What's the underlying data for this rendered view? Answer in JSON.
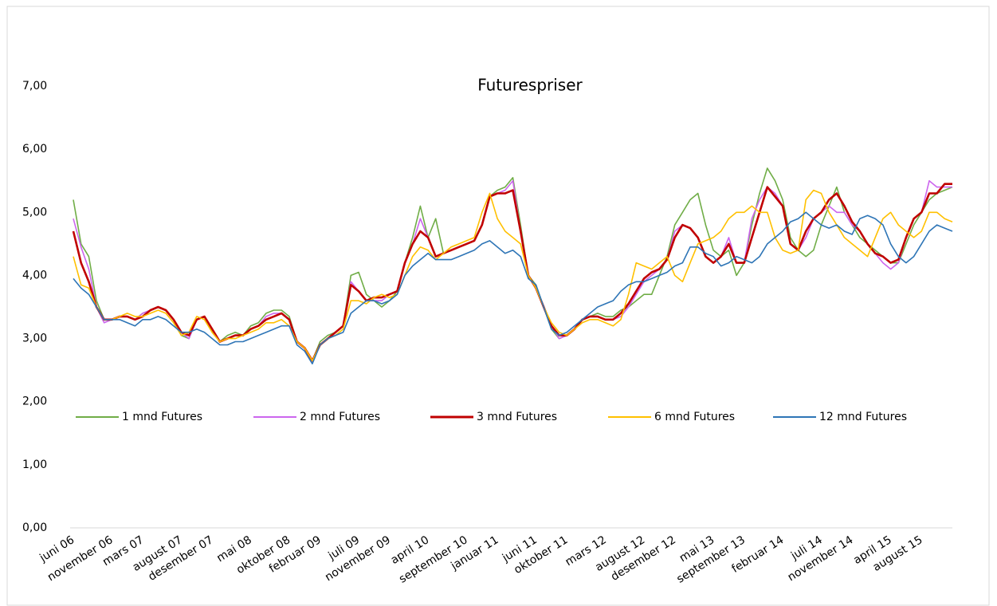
{
  "chart_data": {
    "type": "line",
    "title": "Futurespriser",
    "categories": [
      "juni 06",
      null,
      null,
      null,
      null,
      "november 06",
      null,
      null,
      null,
      "mars 07",
      null,
      null,
      null,
      null,
      "august 07",
      null,
      null,
      null,
      "desember 07",
      null,
      null,
      null,
      null,
      "mai 08",
      null,
      null,
      null,
      null,
      "oktober 08",
      null,
      null,
      null,
      "februar 09",
      null,
      null,
      null,
      null,
      "juli 09",
      null,
      null,
      null,
      "november 09",
      null,
      null,
      null,
      null,
      "april 10",
      null,
      null,
      null,
      null,
      "september 10",
      null,
      null,
      null,
      "januar 11",
      null,
      null,
      null,
      null,
      "juni 11",
      null,
      null,
      null,
      "oktober 11",
      null,
      null,
      null,
      null,
      "mars 12",
      null,
      null,
      null,
      null,
      "august 12",
      null,
      null,
      null,
      "desember 12",
      null,
      null,
      null,
      null,
      "mai 13",
      null,
      null,
      null,
      "september 13",
      null,
      null,
      null,
      null,
      "februar 14",
      null,
      null,
      null,
      null,
      "juli 14",
      null,
      null,
      null,
      "november 14",
      null,
      null,
      null,
      null,
      "april 15",
      null,
      null,
      null,
      "august 15",
      null,
      null,
      null,
      null
    ],
    "series": [
      {
        "name": "1 mnd Futures",
        "color": "#70ad47",
        "values": [
          5.2,
          4.5,
          4.3,
          3.6,
          3.3,
          3.3,
          3.35,
          3.35,
          3.3,
          3.4,
          3.45,
          3.5,
          3.45,
          3.3,
          3.05,
          3.0,
          3.3,
          3.35,
          3.1,
          2.95,
          3.05,
          3.1,
          3.05,
          3.2,
          3.25,
          3.4,
          3.45,
          3.45,
          3.35,
          2.95,
          2.85,
          2.65,
          2.95,
          3.05,
          3.1,
          3.2,
          4.0,
          4.05,
          3.7,
          3.6,
          3.5,
          3.6,
          3.75,
          4.2,
          4.6,
          5.1,
          4.6,
          4.9,
          4.35,
          4.4,
          4.45,
          4.5,
          4.55,
          4.8,
          5.25,
          5.35,
          5.4,
          5.55,
          4.8,
          4.0,
          3.85,
          3.5,
          3.15,
          3.0,
          3.05,
          3.15,
          3.3,
          3.35,
          3.4,
          3.35,
          3.35,
          3.45,
          3.5,
          3.6,
          3.7,
          3.7,
          4.0,
          4.3,
          4.8,
          5.0,
          5.2,
          5.3,
          4.8,
          4.4,
          4.3,
          4.4,
          4.0,
          4.2,
          4.8,
          5.3,
          5.7,
          5.5,
          5.2,
          4.6,
          4.4,
          4.3,
          4.4,
          4.8,
          5.1,
          5.4,
          5.0,
          4.8,
          4.6,
          4.5,
          4.4,
          4.3,
          4.2,
          4.2,
          4.5,
          4.8,
          5.0,
          5.2,
          5.3,
          5.35,
          5.4
        ]
      },
      {
        "name": "2 mnd Futures",
        "color": "#cc66ee",
        "values": [
          4.9,
          4.45,
          4.1,
          3.5,
          3.25,
          3.3,
          3.35,
          3.35,
          3.3,
          3.4,
          3.45,
          3.5,
          3.45,
          3.3,
          3.1,
          3.0,
          3.3,
          3.35,
          3.15,
          2.95,
          3.0,
          3.05,
          3.05,
          3.15,
          3.2,
          3.35,
          3.4,
          3.4,
          3.3,
          2.95,
          2.85,
          2.65,
          2.9,
          3.0,
          3.1,
          3.2,
          3.9,
          3.75,
          3.6,
          3.6,
          3.6,
          3.7,
          3.75,
          4.2,
          4.5,
          4.9,
          4.6,
          4.3,
          4.35,
          4.4,
          4.45,
          4.5,
          4.55,
          4.8,
          5.25,
          5.3,
          5.35,
          5.5,
          4.7,
          4.0,
          3.8,
          3.5,
          3.2,
          3.0,
          3.05,
          3.15,
          3.3,
          3.35,
          3.35,
          3.3,
          3.3,
          3.35,
          3.5,
          3.7,
          3.9,
          4.0,
          4.1,
          4.25,
          4.7,
          4.8,
          4.75,
          4.6,
          4.3,
          4.2,
          4.3,
          4.6,
          4.2,
          4.2,
          4.9,
          5.2,
          5.4,
          5.3,
          5.1,
          4.5,
          4.4,
          4.6,
          4.9,
          5.0,
          5.1,
          5.0,
          5.0,
          4.8,
          4.7,
          4.5,
          4.35,
          4.2,
          4.1,
          4.2,
          4.6,
          4.9,
          5.0,
          5.5,
          5.4,
          5.4,
          5.4
        ]
      },
      {
        "name": "3 mnd Futures",
        "color": "#c00000",
        "values": [
          4.7,
          4.2,
          3.9,
          3.5,
          3.3,
          3.3,
          3.35,
          3.35,
          3.3,
          3.35,
          3.45,
          3.5,
          3.45,
          3.3,
          3.1,
          3.05,
          3.3,
          3.35,
          3.15,
          2.95,
          3.0,
          3.05,
          3.05,
          3.15,
          3.2,
          3.3,
          3.35,
          3.4,
          3.3,
          2.95,
          2.85,
          2.65,
          2.9,
          3.0,
          3.1,
          3.2,
          3.85,
          3.75,
          3.6,
          3.65,
          3.65,
          3.7,
          3.75,
          4.2,
          4.5,
          4.7,
          4.6,
          4.3,
          4.35,
          4.4,
          4.45,
          4.5,
          4.55,
          4.8,
          5.25,
          5.3,
          5.3,
          5.35,
          4.7,
          4.0,
          3.8,
          3.5,
          3.2,
          3.05,
          3.05,
          3.15,
          3.3,
          3.35,
          3.35,
          3.3,
          3.3,
          3.4,
          3.55,
          3.75,
          3.95,
          4.05,
          4.1,
          4.25,
          4.6,
          4.8,
          4.75,
          4.6,
          4.3,
          4.2,
          4.3,
          4.5,
          4.2,
          4.2,
          4.6,
          5.0,
          5.4,
          5.25,
          5.1,
          4.5,
          4.4,
          4.7,
          4.9,
          5.0,
          5.2,
          5.3,
          5.1,
          4.85,
          4.7,
          4.5,
          4.35,
          4.3,
          4.2,
          4.25,
          4.6,
          4.9,
          5.0,
          5.3,
          5.3,
          5.45,
          5.45
        ]
      },
      {
        "name": "6 mnd Futures",
        "color": "#ffc000",
        "values": [
          4.3,
          3.85,
          3.8,
          3.5,
          3.3,
          3.3,
          3.35,
          3.4,
          3.35,
          3.35,
          3.4,
          3.45,
          3.4,
          3.25,
          3.05,
          3.1,
          3.35,
          3.3,
          3.1,
          2.95,
          3.0,
          3.0,
          3.05,
          3.1,
          3.15,
          3.25,
          3.25,
          3.3,
          3.2,
          2.95,
          2.85,
          2.65,
          2.9,
          3.0,
          3.05,
          3.15,
          3.6,
          3.6,
          3.55,
          3.65,
          3.7,
          3.65,
          3.7,
          4.0,
          4.3,
          4.45,
          4.4,
          4.25,
          4.35,
          4.45,
          4.5,
          4.55,
          4.6,
          5.0,
          5.3,
          4.9,
          4.7,
          4.6,
          4.5,
          4.0,
          3.8,
          3.5,
          3.25,
          3.1,
          3.05,
          3.15,
          3.25,
          3.3,
          3.3,
          3.25,
          3.2,
          3.3,
          3.7,
          4.2,
          4.15,
          4.1,
          4.2,
          4.3,
          4.0,
          3.9,
          4.2,
          4.5,
          4.55,
          4.6,
          4.7,
          4.9,
          5.0,
          5.0,
          5.1,
          5.0,
          5.0,
          4.6,
          4.4,
          4.35,
          4.4,
          5.2,
          5.35,
          5.3,
          5.0,
          4.8,
          4.6,
          4.5,
          4.4,
          4.3,
          4.6,
          4.9,
          5.0,
          4.8,
          4.7,
          4.6,
          4.7,
          5.0,
          5.0,
          4.9,
          4.85
        ]
      },
      {
        "name": "12 mnd Futures",
        "color": "#2e75b6",
        "values": [
          3.95,
          3.8,
          3.7,
          3.5,
          3.3,
          3.3,
          3.3,
          3.25,
          3.2,
          3.3,
          3.3,
          3.35,
          3.3,
          3.2,
          3.1,
          3.1,
          3.15,
          3.1,
          3.0,
          2.9,
          2.9,
          2.95,
          2.95,
          3.0,
          3.05,
          3.1,
          3.15,
          3.2,
          3.2,
          2.9,
          2.8,
          2.6,
          2.9,
          3.0,
          3.05,
          3.1,
          3.4,
          3.5,
          3.6,
          3.6,
          3.55,
          3.6,
          3.7,
          4.0,
          4.15,
          4.25,
          4.35,
          4.25,
          4.25,
          4.25,
          4.3,
          4.35,
          4.4,
          4.5,
          4.55,
          4.45,
          4.35,
          4.4,
          4.3,
          3.95,
          3.85,
          3.5,
          3.15,
          3.05,
          3.1,
          3.2,
          3.3,
          3.4,
          3.5,
          3.55,
          3.6,
          3.75,
          3.85,
          3.9,
          3.9,
          3.95,
          4.0,
          4.05,
          4.15,
          4.2,
          4.45,
          4.45,
          4.35,
          4.3,
          4.15,
          4.2,
          4.3,
          4.25,
          4.2,
          4.3,
          4.5,
          4.6,
          4.7,
          4.85,
          4.9,
          5.0,
          4.9,
          4.8,
          4.75,
          4.8,
          4.7,
          4.65,
          4.9,
          4.95,
          4.9,
          4.8,
          4.5,
          4.3,
          4.2,
          4.3,
          4.5,
          4.7,
          4.8,
          4.75,
          4.7
        ]
      }
    ],
    "ylim": [
      0,
      7
    ],
    "yticks": [
      {
        "value": 0,
        "label": "0,00"
      },
      {
        "value": 1,
        "label": "1,00"
      },
      {
        "value": 2,
        "label": "2,00"
      },
      {
        "value": 3,
        "label": "3,00"
      },
      {
        "value": 4,
        "label": "4,00"
      },
      {
        "value": 5,
        "label": "5,00"
      },
      {
        "value": 6,
        "label": "6,00"
      },
      {
        "value": 7,
        "label": "7,00"
      }
    ],
    "grid": false
  }
}
